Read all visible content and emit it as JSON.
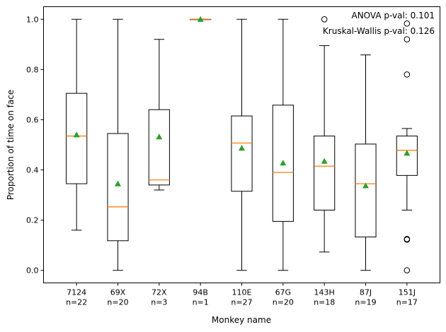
{
  "chart_data": {
    "type": "box",
    "xlabel": "Monkey name",
    "ylabel": "Proportion of time on face",
    "ylim": [
      -0.05,
      1.05
    ],
    "yticks": [
      0.0,
      0.2,
      0.4,
      0.6,
      0.8,
      1.0
    ],
    "ytick_labels": [
      "0.0",
      "0.2",
      "0.4",
      "0.6",
      "0.8",
      "1.0"
    ],
    "annotations": [
      "ANOVA p-val: 0.101",
      "Kruskal-Wallis p-val: 0.126"
    ],
    "colors": {
      "box": "#000000",
      "median": "#ff7f0e",
      "mean": "#2ca02c"
    },
    "categories": [
      {
        "name": "7124",
        "n_label": "n=22",
        "whisker_low": 0.16,
        "q1": 0.345,
        "median": 0.535,
        "q3": 0.705,
        "whisker_high": 1.0,
        "mean": 0.54,
        "outliers": []
      },
      {
        "name": "69X",
        "n_label": "n=20",
        "whisker_low": 0.0,
        "q1": 0.118,
        "median": 0.253,
        "q3": 0.545,
        "whisker_high": 1.0,
        "mean": 0.345,
        "outliers": []
      },
      {
        "name": "72X",
        "n_label": "n=3",
        "whisker_low": 0.32,
        "q1": 0.34,
        "median": 0.36,
        "q3": 0.64,
        "whisker_high": 0.92,
        "mean": 0.532,
        "outliers": []
      },
      {
        "name": "94B",
        "n_label": "n=1",
        "whisker_low": 1.0,
        "q1": 1.0,
        "median": 1.0,
        "q3": 1.0,
        "whisker_high": 1.0,
        "mean": 1.0,
        "outliers": []
      },
      {
        "name": "110E",
        "n_label": "n=27",
        "whisker_low": 0.0,
        "q1": 0.315,
        "median": 0.507,
        "q3": 0.615,
        "whisker_high": 1.0,
        "mean": 0.487,
        "outliers": []
      },
      {
        "name": "67G",
        "n_label": "n=20",
        "whisker_low": 0.0,
        "q1": 0.195,
        "median": 0.39,
        "q3": 0.658,
        "whisker_high": 1.0,
        "mean": 0.428,
        "outliers": []
      },
      {
        "name": "143H",
        "n_label": "n=18",
        "whisker_low": 0.073,
        "q1": 0.24,
        "median": 0.415,
        "q3": 0.535,
        "whisker_high": 0.895,
        "mean": 0.435,
        "outliers": [
          1.0
        ]
      },
      {
        "name": "87J",
        "n_label": "n=19",
        "whisker_low": 0.0,
        "q1": 0.133,
        "median": 0.345,
        "q3": 0.503,
        "whisker_high": 0.858,
        "mean": 0.337,
        "outliers": []
      },
      {
        "name": "151J",
        "n_label": "n=17",
        "whisker_low": 0.24,
        "q1": 0.378,
        "median": 0.478,
        "q3": 0.535,
        "whisker_high": 0.565,
        "mean": 0.467,
        "outliers": [
          0.0,
          0.122,
          0.125,
          0.78,
          0.92,
          0.983
        ]
      }
    ]
  }
}
